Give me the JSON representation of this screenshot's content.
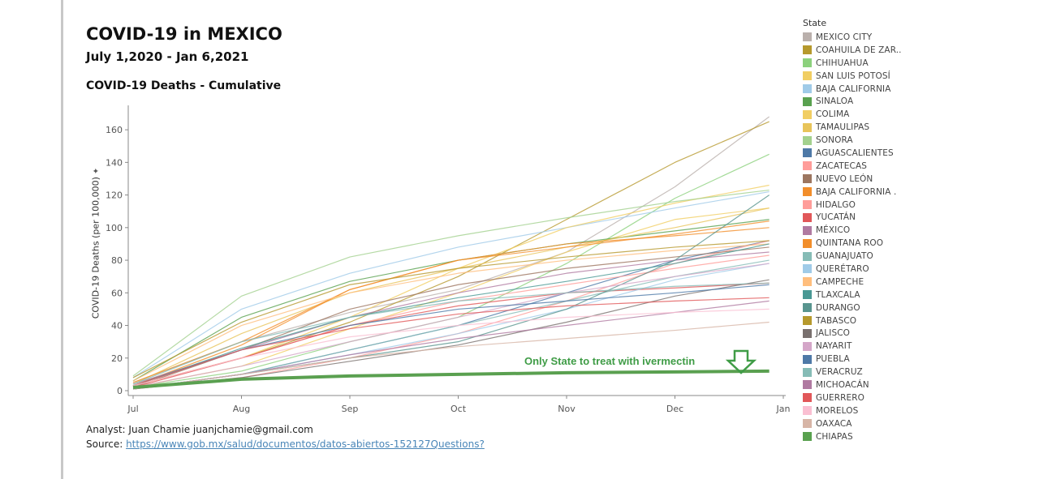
{
  "header": {
    "title": "COVID-19 in MEXICO",
    "subtitle": "July 1,2020 - Jan 6,2021",
    "chart_title": "COVID-19 Deaths - Cumulative"
  },
  "footer": {
    "analyst_label": "Analyst: Juan Chamie  juanjchamie@gmail.com",
    "source_prefix": "Source: ",
    "source_link": "https://www.gob.mx/salud/documentos/datos-abiertos-152127",
    "questions_link": "Questions?"
  },
  "colors": {
    "chiapas": "#5aa050",
    "annotation": "#3f9c46",
    "axis": "#888888",
    "grid": "#eeeeee"
  },
  "icons": {
    "pin": "pin-icon",
    "arrow": "down-arrow-icon"
  },
  "legend": {
    "title": "State",
    "items": [
      {
        "label": "MEXICO CITY",
        "color": "#bab0ac"
      },
      {
        "label": "COAHUILA DE ZAR..",
        "color": "#b6992d"
      },
      {
        "label": "CHIHUAHUA",
        "color": "#8cd17d"
      },
      {
        "label": "SAN LUIS POTOSÍ",
        "color": "#f1ce63"
      },
      {
        "label": "BAJA CALIFORNIA",
        "color": "#a0cbe8"
      },
      {
        "label": "SINALOA",
        "color": "#59a14f"
      },
      {
        "label": "COLIMA",
        "color": "#f1ce63"
      },
      {
        "label": "TAMAULIPAS",
        "color": "#e8c45a"
      },
      {
        "label": "SONORA",
        "color": "#a3d18e"
      },
      {
        "label": "AGUASCALIENTES",
        "color": "#4e79a7"
      },
      {
        "label": "ZACATECAS",
        "color": "#ff9d9a"
      },
      {
        "label": "NUEVO LEÓN",
        "color": "#9d7660"
      },
      {
        "label": "BAJA CALIFORNIA .",
        "color": "#f28e2b"
      },
      {
        "label": "HIDALGO",
        "color": "#ff9d9a"
      },
      {
        "label": "YUCATÁN",
        "color": "#e15759"
      },
      {
        "label": "MÉXICO",
        "color": "#b07aa1"
      },
      {
        "label": "QUINTANA ROO",
        "color": "#f28e2b"
      },
      {
        "label": "GUANAJUATO",
        "color": "#86bcb6"
      },
      {
        "label": "QUERÉTARO",
        "color": "#a0cbe8"
      },
      {
        "label": "CAMPECHE",
        "color": "#ffbe7d"
      },
      {
        "label": "TLAXCALA",
        "color": "#499894"
      },
      {
        "label": "DURANGO",
        "color": "#59958f"
      },
      {
        "label": "TABASCO",
        "color": "#b6992d"
      },
      {
        "label": "JALISCO",
        "color": "#79706e"
      },
      {
        "label": "NAYARIT",
        "color": "#d4a6c8"
      },
      {
        "label": "PUEBLA",
        "color": "#4e79a7"
      },
      {
        "label": "VERACRUZ",
        "color": "#86bcb6"
      },
      {
        "label": "MICHOACÁN",
        "color": "#b07aa1"
      },
      {
        "label": "GUERRERO",
        "color": "#e15759"
      },
      {
        "label": "MORELOS",
        "color": "#fabfd2"
      },
      {
        "label": "OAXACA",
        "color": "#d7b5a6"
      },
      {
        "label": "CHIAPAS",
        "color": "#59a14f"
      }
    ]
  },
  "chart_data": {
    "type": "line",
    "title": "COVID-19 Deaths - Cumulative",
    "xlabel": "",
    "ylabel": "COVID-19 Deaths (per 100,000)",
    "ylim": [
      0,
      170
    ],
    "yticks": [
      0,
      20,
      40,
      60,
      80,
      100,
      120,
      140,
      160
    ],
    "x_ticks": [
      "Jul",
      "Aug",
      "Sep",
      "Oct",
      "Nov",
      "Dec",
      "Jan"
    ],
    "x": [
      0,
      1,
      2,
      3,
      4,
      5,
      5.87
    ],
    "grid": false,
    "legend_position": "right",
    "annotation": "Only State to treat with ivermectin",
    "series": [
      {
        "name": "MEXICO CITY",
        "values": [
          5,
          30,
          48,
          62,
          85,
          125,
          168
        ]
      },
      {
        "name": "COAHUILA DE ZAR..",
        "values": [
          3,
          20,
          42,
          70,
          105,
          140,
          165
        ]
      },
      {
        "name": "CHIHUAHUA",
        "values": [
          2,
          12,
          30,
          45,
          78,
          118,
          145
        ]
      },
      {
        "name": "SAN LUIS POTOSÍ",
        "values": [
          2,
          15,
          38,
          60,
          85,
          105,
          112
        ]
      },
      {
        "name": "BAJA CALIFORNIA",
        "values": [
          8,
          50,
          72,
          88,
          100,
          112,
          122
        ]
      },
      {
        "name": "SINALOA",
        "values": [
          6,
          45,
          67,
          80,
          90,
          98,
          105
        ]
      },
      {
        "name": "COLIMA",
        "values": [
          3,
          20,
          45,
          75,
          100,
          115,
          126
        ]
      },
      {
        "name": "TAMAULIPAS",
        "values": [
          4,
          35,
          60,
          75,
          88,
          100,
          112
        ]
      },
      {
        "name": "SONORA",
        "values": [
          9,
          58,
          82,
          95,
          106,
          116,
          123
        ]
      },
      {
        "name": "AGUASCALIENTES",
        "values": [
          1,
          10,
          25,
          40,
          60,
          80,
          92
        ]
      },
      {
        "name": "ZACATECAS",
        "values": [
          1,
          8,
          20,
          35,
          55,
          78,
          92
        ]
      },
      {
        "name": "NUEVO LEÓN",
        "values": [
          2,
          25,
          50,
          65,
          75,
          82,
          88
        ]
      },
      {
        "name": "BAJA CALIFORNIA .",
        "values": [
          3,
          28,
          62,
          80,
          88,
          96,
          104
        ]
      },
      {
        "name": "HIDALGO",
        "values": [
          3,
          20,
          40,
          55,
          65,
          75,
          83
        ]
      },
      {
        "name": "YUCATÁN",
        "values": [
          2,
          20,
          40,
          52,
          60,
          63,
          66
        ]
      },
      {
        "name": "MÉXICO",
        "values": [
          4,
          25,
          45,
          60,
          72,
          80,
          85
        ]
      },
      {
        "name": "QUINTANA ROO",
        "values": [
          5,
          30,
          62,
          80,
          90,
          95,
          100
        ]
      },
      {
        "name": "GUANAJUATO",
        "values": [
          1,
          10,
          25,
          40,
          55,
          70,
          80
        ]
      },
      {
        "name": "QUERÉTARO",
        "values": [
          1,
          10,
          22,
          35,
          50,
          68,
          78
        ]
      },
      {
        "name": "CAMPECHE",
        "values": [
          6,
          40,
          60,
          72,
          80,
          86,
          90
        ]
      },
      {
        "name": "TLAXCALA",
        "values": [
          3,
          26,
          45,
          57,
          67,
          78,
          90
        ]
      },
      {
        "name": "DURANGO",
        "values": [
          1,
          10,
          20,
          30,
          50,
          80,
          120
        ]
      },
      {
        "name": "TABASCO",
        "values": [
          8,
          42,
          65,
          75,
          82,
          88,
          92
        ]
      },
      {
        "name": "JALISCO",
        "values": [
          1,
          8,
          18,
          28,
          42,
          58,
          68
        ]
      },
      {
        "name": "NAYARIT",
        "values": [
          2,
          15,
          30,
          45,
          60,
          70,
          78
        ]
      },
      {
        "name": "PUEBLA",
        "values": [
          3,
          25,
          40,
          50,
          55,
          60,
          65
        ]
      },
      {
        "name": "VERACRUZ",
        "values": [
          4,
          30,
          45,
          55,
          60,
          64,
          66
        ]
      },
      {
        "name": "MICHOACÁN",
        "values": [
          1,
          10,
          22,
          32,
          40,
          48,
          55
        ]
      },
      {
        "name": "GUERRERO",
        "values": [
          3,
          25,
          38,
          47,
          52,
          55,
          57
        ]
      },
      {
        "name": "MORELOS",
        "values": [
          3,
          20,
          33,
          40,
          45,
          48,
          50
        ]
      },
      {
        "name": "OAXACA",
        "values": [
          1,
          10,
          20,
          27,
          32,
          37,
          42
        ]
      },
      {
        "name": "CHIAPAS",
        "values": [
          2,
          7,
          9,
          10,
          11,
          11.5,
          12
        ]
      }
    ]
  }
}
